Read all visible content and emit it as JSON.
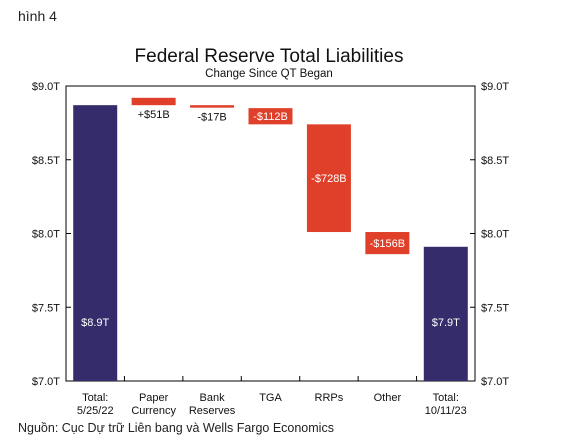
{
  "caption": "hình 4",
  "source": "Nguồn: Cục Dự trữ Liên bang và Wells Fargo Economics",
  "colors": {
    "increase_total": "#352c6b",
    "decrease": "#e0402a",
    "axis": "#000000"
  },
  "chart_data": {
    "type": "bar",
    "subtype": "waterfall",
    "title": "Federal Reserve Total Liabilities",
    "subtitle": "Change Since QT Began",
    "categories": [
      "Total:\n5/25/22",
      "Paper\nCurrency",
      "Bank\nReserves",
      "TGA",
      "RRPs",
      "Other",
      "Total:\n10/11/23"
    ],
    "bars": [
      {
        "category": "Total: 5/25/22",
        "kind": "total",
        "start": 7.0,
        "end": 8.87,
        "label": "$8.9T"
      },
      {
        "category": "Paper Currency",
        "kind": "change",
        "start": 8.92,
        "end": 8.87,
        "label": "+$51B"
      },
      {
        "category": "Bank Reserves",
        "kind": "change",
        "start": 8.87,
        "end": 8.853,
        "label": "-$17B"
      },
      {
        "category": "TGA",
        "kind": "change",
        "start": 8.85,
        "end": 8.74,
        "label": "-$112B"
      },
      {
        "category": "RRPs",
        "kind": "change",
        "start": 8.74,
        "end": 8.01,
        "label": "-$728B"
      },
      {
        "category": "Other",
        "kind": "change",
        "start": 8.01,
        "end": 7.86,
        "label": "-$156B"
      },
      {
        "category": "Total: 10/11/23",
        "kind": "total",
        "start": 7.0,
        "end": 7.91,
        "label": "$7.9T"
      }
    ],
    "yticks": [
      "$7.0T",
      "$7.5T",
      "$8.0T",
      "$8.5T",
      "$9.0T"
    ],
    "ytick_values": [
      7.0,
      7.5,
      8.0,
      8.5,
      9.0
    ],
    "ylim": [
      7.0,
      9.0
    ],
    "grid": false,
    "legend": "none"
  }
}
